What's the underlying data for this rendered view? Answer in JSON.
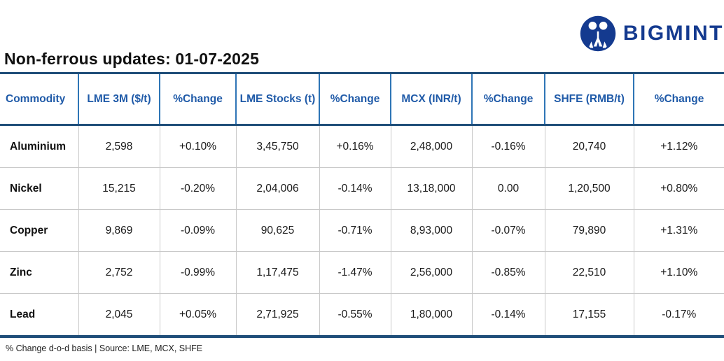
{
  "brand": {
    "name": "BIGMINT",
    "logo_icon": "bigmint-logo-icon"
  },
  "colors": {
    "brand": "#143a8f",
    "positive": "#2bb673",
    "negative": "#ee1c25",
    "header_text": "#1f5aa8",
    "border_navy": "#1f4e79",
    "border_blue": "#2e75b6",
    "row_border": "#c9c9c9"
  },
  "chart_data": {
    "type": "table",
    "title": "Non-ferrous updates: 01-07-2025",
    "note": "% Change d-o-d basis | Source: LME, MCX, SHFE",
    "columns": [
      "Commodity",
      "LME 3M ($/t)",
      "%Change",
      "LME Stocks (t)",
      "%Change",
      "MCX (INR/t)",
      "%Change",
      "SHFE (RMB/t)",
      "%Change"
    ],
    "rows": [
      {
        "commodity": "Aluminium",
        "cells": [
          {
            "text": "2,598"
          },
          {
            "text": "+0.10%",
            "trend": "up"
          },
          {
            "text": "3,45,750"
          },
          {
            "text": "+0.16%",
            "trend": "up"
          },
          {
            "text": "2,48,000"
          },
          {
            "text": "-0.16%",
            "trend": "down"
          },
          {
            "text": "20,740"
          },
          {
            "text": "+1.12%",
            "trend": "up"
          }
        ]
      },
      {
        "commodity": "Nickel",
        "cells": [
          {
            "text": "15,215"
          },
          {
            "text": "-0.20%",
            "trend": "down"
          },
          {
            "text": "2,04,006"
          },
          {
            "text": "-0.14%",
            "trend": "down"
          },
          {
            "text": "13,18,000"
          },
          {
            "text": "0.00",
            "trend": "flat"
          },
          {
            "text": "1,20,500"
          },
          {
            "text": "+0.80%",
            "trend": "up"
          }
        ]
      },
      {
        "commodity": "Copper",
        "cells": [
          {
            "text": "9,869"
          },
          {
            "text": "-0.09%",
            "trend": "down"
          },
          {
            "text": "90,625"
          },
          {
            "text": "-0.71%",
            "trend": "down"
          },
          {
            "text": "8,93,000"
          },
          {
            "text": "-0.07%",
            "trend": "down"
          },
          {
            "text": "79,890"
          },
          {
            "text": "+1.31%",
            "trend": "up"
          }
        ]
      },
      {
        "commodity": "Zinc",
        "cells": [
          {
            "text": "2,752"
          },
          {
            "text": "-0.99%",
            "trend": "down"
          },
          {
            "text": "1,17,475"
          },
          {
            "text": "-1.47%",
            "trend": "down"
          },
          {
            "text": "2,56,000"
          },
          {
            "text": "-0.85%",
            "trend": "down"
          },
          {
            "text": "22,510"
          },
          {
            "text": "+1.10%",
            "trend": "up"
          }
        ]
      },
      {
        "commodity": "Lead",
        "cells": [
          {
            "text": "2,045"
          },
          {
            "text": "+0.05%",
            "trend": "up"
          },
          {
            "text": "2,71,925"
          },
          {
            "text": "-0.55%",
            "trend": "down"
          },
          {
            "text": "1,80,000"
          },
          {
            "text": "-0.14%",
            "trend": "down"
          },
          {
            "text": "17,155"
          },
          {
            "text": "-0.17%",
            "trend": "down"
          }
        ]
      }
    ]
  }
}
